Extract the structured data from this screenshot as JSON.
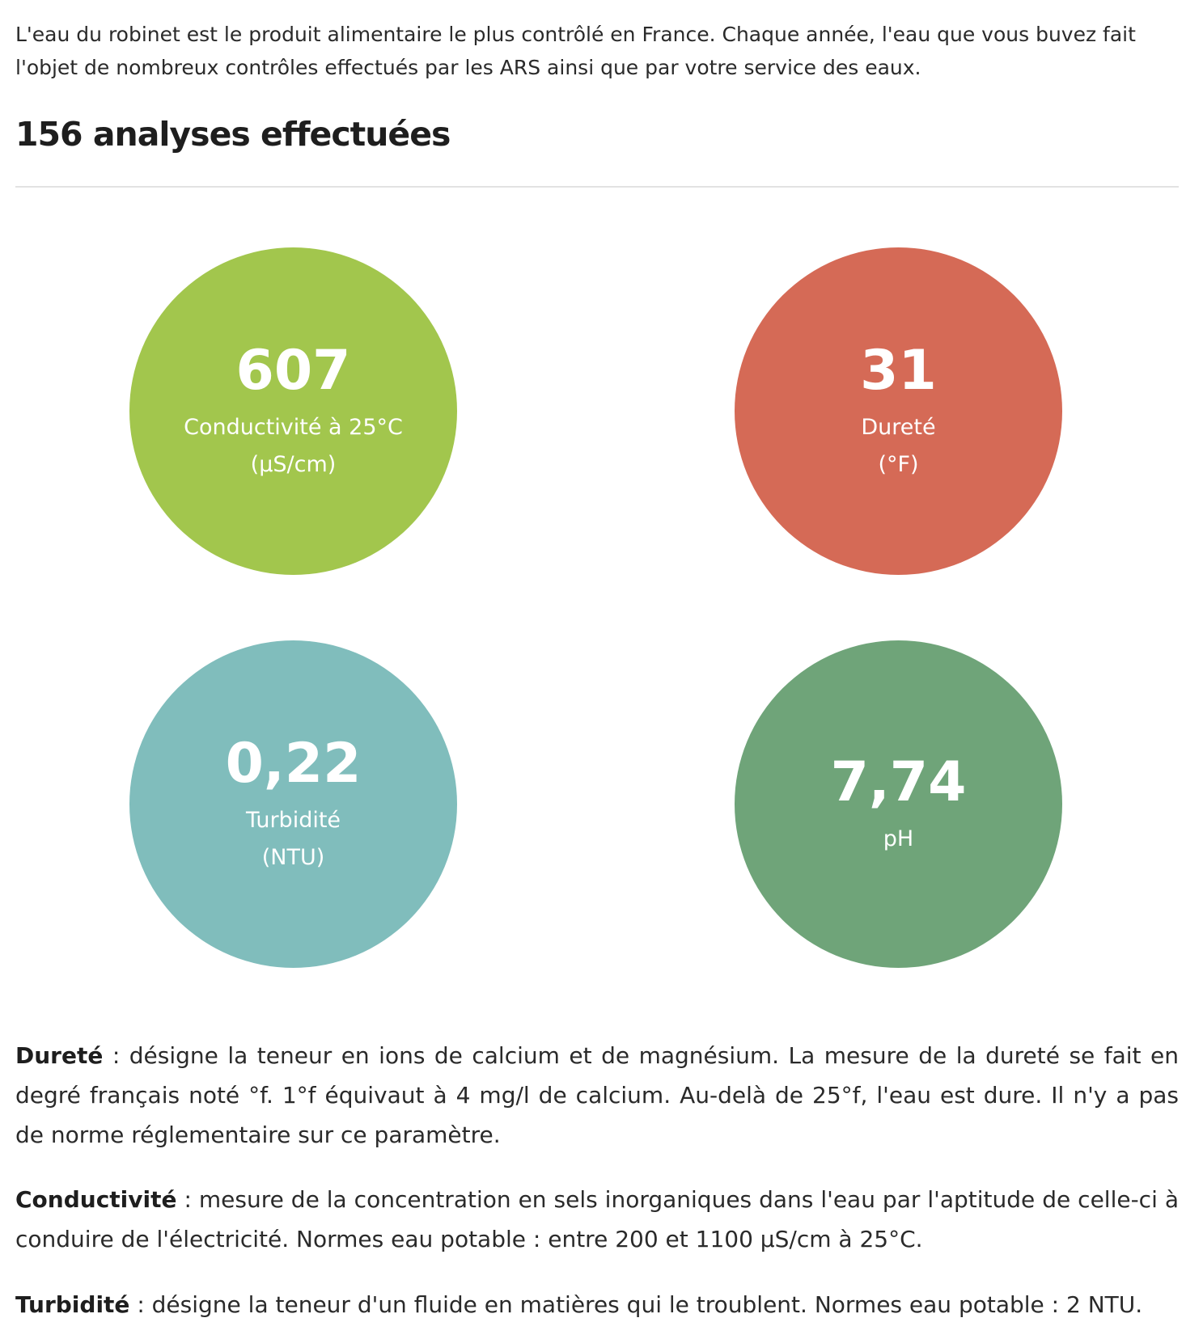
{
  "intro": "L'eau du robinet est le produit alimentaire le plus contrôlé en France. Chaque année, l'eau que vous buvez fait l'objet de nombreux contrôles effectués par les ARS ainsi que par votre service des eaux.",
  "analyses_title": "156 analyses effectuées",
  "metrics": [
    {
      "value": "607",
      "label": "Conductivité à 25°C",
      "unit": "(µS/cm)",
      "color": "#a2c64d"
    },
    {
      "value": "31",
      "label": "Dureté",
      "unit": "(°F)",
      "color": "#d56a56"
    },
    {
      "value": "0,22",
      "label": "Turbidité",
      "unit": "(NTU)",
      "color": "#80bdbc"
    },
    {
      "value": "7,74",
      "label": "pH",
      "unit": "",
      "color": "#6fa479"
    }
  ],
  "definitions": [
    {
      "term": "Dureté",
      "text": " : désigne la teneur en ions de calcium et de magnésium. La mesure de la dureté se fait en degré français noté °f. 1°f équivaut à 4 mg/l de calcium. Au-delà de 25°f, l'eau est dure. Il n'y a pas de norme réglementaire sur ce paramètre."
    },
    {
      "term": "Conductivité",
      "text": " : mesure de la concentration en sels inorganiques dans l'eau par l'aptitude de celle-ci à conduire de l'électricité. Normes eau potable : entre 200 et 1100 µS/cm à 25°C."
    },
    {
      "term": "Turbidité",
      "text": " : désigne la teneur d'un fluide en matières qui le troublent. Normes eau potable : 2 NTU."
    }
  ]
}
